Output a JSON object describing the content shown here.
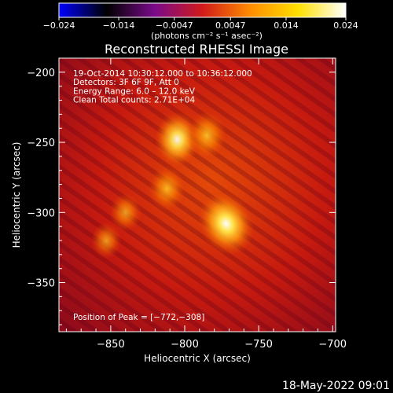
{
  "colorbar": {
    "tick_labels": [
      "−0.024",
      "−0.014",
      "−0.0047",
      "0.0047",
      "0.014",
      "0.024"
    ],
    "tick_values": [
      -0.024,
      -0.014,
      -0.0047,
      0.0047,
      0.014,
      0.024
    ],
    "unit_label": "(photons cm⁻² s⁻¹ asec⁻²)",
    "range": [
      -0.024,
      0.024
    ],
    "colors": [
      "#0000ff",
      "#000000",
      "#7a0a8a",
      "#d11a1a",
      "#ff8c00",
      "#ffe000",
      "#ffffff"
    ]
  },
  "chart_data": {
    "type": "heatmap",
    "title": "Reconstructed RHESSI Image",
    "xlabel": "Heliocentric X (arcsec)",
    "ylabel": "Heliocentric Y (arcsec)",
    "xlim": [
      -885,
      -698
    ],
    "ylim": [
      -385,
      -190
    ],
    "x_ticks": [
      -850,
      -800,
      -750,
      -700
    ],
    "x_tick_labels": [
      "−850",
      "−800",
      "−750",
      "−700"
    ],
    "y_ticks": [
      -200,
      -250,
      -300,
      -350
    ],
    "y_tick_labels": [
      "−200",
      "−250",
      "−300",
      "−350"
    ],
    "info_lines": [
      "19-Oct-2014 10:30:12.000 to 10:36:12.000",
      "Detectors: 3F 6F 9F, Att 0",
      "Energy Range: 6.0 – 12.0 keV",
      "Clean     Total counts: 2.71E+04"
    ],
    "peak_label": "Position of Peak = [−772,−308]",
    "peak": [
      -772,
      -308
    ],
    "sources": [
      {
        "x": -772,
        "y": -308,
        "intensity": 0.024
      },
      {
        "x": -805,
        "y": -248,
        "intensity": 0.018
      },
      {
        "x": -785,
        "y": -245,
        "intensity": 0.014
      },
      {
        "x": -812,
        "y": -283,
        "intensity": 0.012
      },
      {
        "x": -840,
        "y": -300,
        "intensity": 0.008
      },
      {
        "x": -853,
        "y": -320,
        "intensity": 0.007
      }
    ]
  },
  "footer_date": "18-May-2022 09:01"
}
